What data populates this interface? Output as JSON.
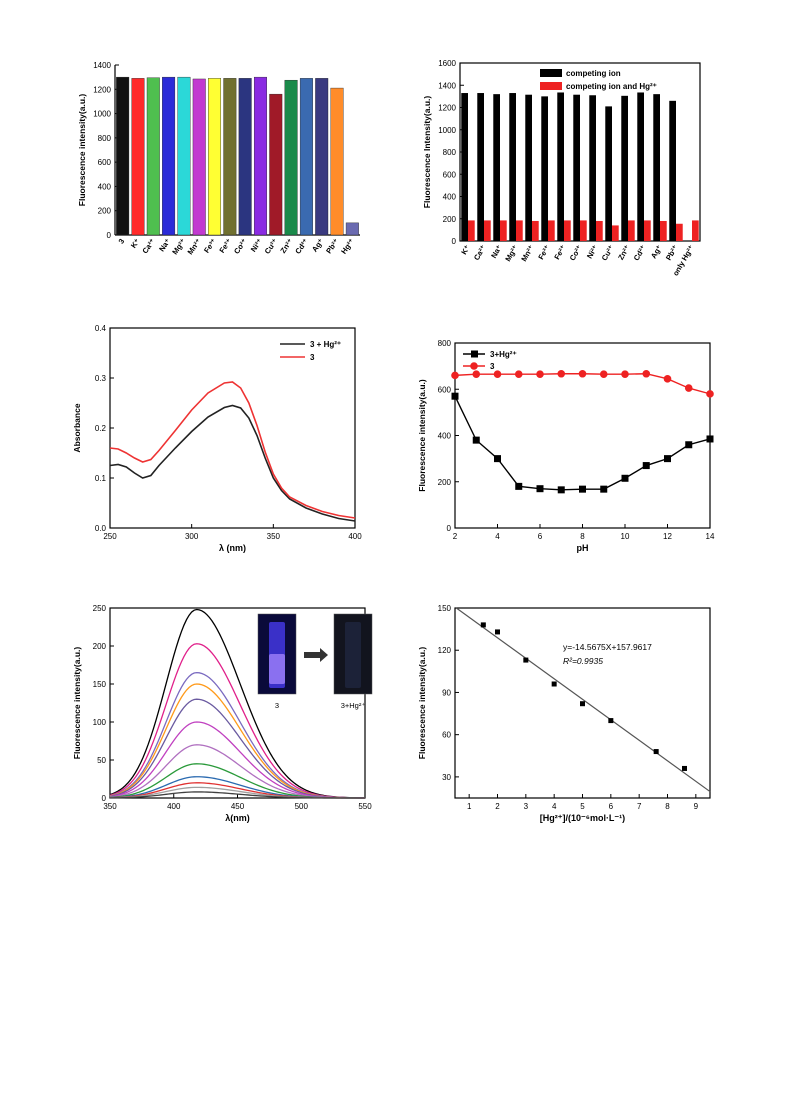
{
  "chart_data": [
    {
      "id": "p1",
      "type": "bar",
      "title": "",
      "ylabel": "Fluorescence intensity(a.u.)",
      "xlabel": "",
      "ylim": [
        0,
        1400
      ],
      "yticks": [
        0,
        200,
        400,
        600,
        800,
        1000,
        1200,
        1400
      ],
      "categories": [
        "3",
        "K⁺",
        "Ca²⁺",
        "Na⁺",
        "Mg²⁺",
        "Mn²⁺",
        "Fe³⁺",
        "Fe²⁺",
        "Co²⁺",
        "Ni²⁺",
        "Cu²⁺",
        "Zn²⁺",
        "Cd²⁺",
        "Ag⁺",
        "Pb²⁺",
        "Hg²⁺"
      ],
      "values": [
        1300,
        1290,
        1295,
        1300,
        1300,
        1285,
        1290,
        1290,
        1290,
        1300,
        1160,
        1275,
        1290,
        1290,
        1210,
        100
      ],
      "colors": [
        "#111111",
        "#ff2a2a",
        "#4fbf4f",
        "#2b2bd8",
        "#2bd8d8",
        "#c23ad0",
        "#ffff33",
        "#707030",
        "#2b3580",
        "#8a2be2",
        "#a01a28",
        "#1a8a4a",
        "#3a6ab0",
        "#3a3a80",
        "#ff8c2a",
        "#6a6ab0"
      ]
    },
    {
      "id": "p2",
      "type": "bar",
      "title": "",
      "ylabel": "Fluorescence Intensity(a.u.)",
      "xlabel": "",
      "ylim": [
        0,
        1600
      ],
      "yticks": [
        0,
        200,
        400,
        600,
        800,
        1000,
        1200,
        1400,
        1600
      ],
      "categories": [
        "K⁺",
        "Ca²⁺",
        "Na⁺",
        "Mg²⁺",
        "Mn²⁺",
        "Fe³⁺",
        "Fe²⁺",
        "Co²⁺",
        "Ni²⁺",
        "Cu²⁺",
        "Zn²⁺",
        "Cd²⁺",
        "Ag⁺",
        "Pb²⁺",
        "only Hg²⁺"
      ],
      "series": [
        {
          "name": "competing ion",
          "color": "#000000",
          "values": [
            1330,
            1330,
            1320,
            1330,
            1315,
            1300,
            1335,
            1315,
            1310,
            1210,
            1305,
            1335,
            1320,
            1260,
            null
          ]
        },
        {
          "name": "competing ion and Hg²⁺",
          "color": "#ee2222",
          "values": [
            185,
            185,
            185,
            185,
            180,
            185,
            185,
            185,
            180,
            140,
            185,
            185,
            180,
            155,
            185
          ]
        }
      ]
    },
    {
      "id": "p3",
      "type": "line",
      "xlabel": "λ (nm)",
      "ylabel": "Absorbance",
      "xlim": [
        250,
        400
      ],
      "ylim": [
        0,
        0.4
      ],
      "xticks": [
        250,
        300,
        350,
        400
      ],
      "yticks": [
        0.0,
        0.1,
        0.2,
        0.3,
        0.4
      ],
      "series": [
        {
          "name": "3 + Hg²⁺",
          "color": "#222222",
          "x": [
            250,
            255,
            260,
            265,
            270,
            275,
            280,
            290,
            300,
            310,
            320,
            325,
            330,
            335,
            340,
            345,
            350,
            355,
            360,
            370,
            380,
            390,
            400
          ],
          "y": [
            0.125,
            0.127,
            0.122,
            0.11,
            0.1,
            0.105,
            0.125,
            0.16,
            0.193,
            0.222,
            0.241,
            0.245,
            0.24,
            0.22,
            0.185,
            0.14,
            0.1,
            0.075,
            0.058,
            0.04,
            0.028,
            0.019,
            0.014
          ]
        },
        {
          "name": "3",
          "color": "#ee3333",
          "x": [
            250,
            255,
            260,
            265,
            270,
            275,
            280,
            290,
            300,
            310,
            320,
            325,
            330,
            335,
            340,
            345,
            350,
            355,
            360,
            370,
            380,
            390,
            400
          ],
          "y": [
            0.16,
            0.158,
            0.15,
            0.14,
            0.132,
            0.137,
            0.155,
            0.195,
            0.236,
            0.27,
            0.29,
            0.292,
            0.28,
            0.25,
            0.205,
            0.152,
            0.108,
            0.08,
            0.062,
            0.045,
            0.033,
            0.025,
            0.02
          ]
        }
      ]
    },
    {
      "id": "p4",
      "type": "line",
      "xlabel": "pH",
      "ylabel": "Fluorescence intensity(a.u.)",
      "xlim": [
        2,
        14
      ],
      "ylim": [
        0,
        800
      ],
      "xticks": [
        2,
        4,
        6,
        8,
        10,
        12,
        14
      ],
      "yticks": [
        0,
        200,
        400,
        600,
        800
      ],
      "series": [
        {
          "name": "3+Hg²⁺",
          "color": "#000000",
          "marker": "square",
          "x": [
            2,
            3,
            4,
            5,
            6,
            7,
            8,
            9,
            10,
            11,
            12,
            13,
            14
          ],
          "y": [
            570,
            380,
            300,
            180,
            170,
            165,
            168,
            168,
            215,
            270,
            300,
            360,
            385
          ]
        },
        {
          "name": "3",
          "color": "#ee2222",
          "marker": "circle",
          "x": [
            2,
            3,
            4,
            5,
            6,
            7,
            8,
            9,
            10,
            11,
            12,
            13,
            14
          ],
          "y": [
            660,
            665,
            665,
            665,
            665,
            667,
            667,
            665,
            665,
            667,
            645,
            605,
            580
          ]
        }
      ]
    },
    {
      "id": "p5",
      "type": "line",
      "xlabel": "λ(nm)",
      "ylabel": "Fluorescence intensity(a.u.)",
      "xlim": [
        350,
        550
      ],
      "ylim": [
        0,
        250
      ],
      "xticks": [
        350,
        400,
        450,
        500,
        550
      ],
      "yticks": [
        0,
        50,
        100,
        150,
        200,
        250
      ],
      "peak_x": 418,
      "series": [
        {
          "color": "#000000",
          "peak": 248
        },
        {
          "color": "#e0208a",
          "peak": 203
        },
        {
          "color": "#7a6ac0",
          "peak": 165
        },
        {
          "color": "#ff9a1a",
          "peak": 150
        },
        {
          "color": "#6a5aa0",
          "peak": 130
        },
        {
          "color": "#c040c0",
          "peak": 100
        },
        {
          "color": "#b070c0",
          "peak": 70
        },
        {
          "color": "#2a9a3a",
          "peak": 45
        },
        {
          "color": "#2a6ab0",
          "peak": 28
        },
        {
          "color": "#e03030",
          "peak": 20
        },
        {
          "color": "#a0a0a0",
          "peak": 14
        },
        {
          "color": "#404040",
          "peak": 8
        }
      ],
      "inset_labels": [
        "3",
        "3+Hg²⁺"
      ]
    },
    {
      "id": "p6",
      "type": "scatter",
      "xlabel": "[Hg²⁺]/(10⁻⁶mol·L⁻¹)",
      "ylabel": "Fluorescence intensity(a.u.)",
      "xlim": [
        0.5,
        9.5
      ],
      "ylim": [
        15,
        150
      ],
      "xticks": [
        1,
        2,
        3,
        4,
        5,
        6,
        7,
        8,
        9
      ],
      "yticks": [
        30,
        60,
        90,
        120,
        150
      ],
      "x": [
        1.5,
        2.0,
        3.0,
        4.0,
        5.0,
        6.0,
        7.6,
        8.6
      ],
      "y": [
        138,
        133,
        113,
        96,
        82,
        70,
        48,
        36
      ],
      "fit": {
        "slope": -14.5675,
        "intercept": 157.9617
      },
      "equation": "y=-14.5675X+157.9617",
      "r2": "R²=0.9935"
    }
  ]
}
